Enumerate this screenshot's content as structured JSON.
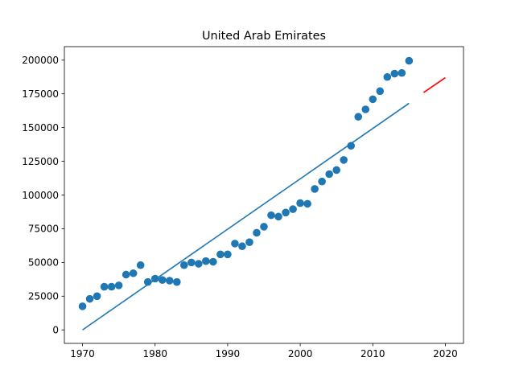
{
  "chart_data": {
    "type": "scatter",
    "title": "United Arab Emirates",
    "xlabel": "",
    "ylabel": "",
    "xlim": [
      1967.5,
      2022.5
    ],
    "ylim": [
      -10000,
      210000
    ],
    "xticks": [
      1970,
      1980,
      1990,
      2000,
      2010,
      2020
    ],
    "yticks": [
      0,
      25000,
      50000,
      75000,
      100000,
      125000,
      150000,
      175000,
      200000
    ],
    "grid": false,
    "colors": {
      "points": "#1f77b4",
      "fit": "#1f77b4",
      "forecast": "#ff0000"
    },
    "series": [
      {
        "kind": "scatter",
        "x": [
          1970,
          1971,
          1972,
          1973,
          1974,
          1975,
          1976,
          1977,
          1978,
          1979,
          1980,
          1981,
          1982,
          1983,
          1984,
          1985,
          1986,
          1987,
          1988,
          1989,
          1990,
          1991,
          1992,
          1993,
          1994,
          1995,
          1996,
          1997,
          1998,
          1999,
          2000,
          2001,
          2002,
          2003,
          2004,
          2005,
          2006,
          2007,
          2008,
          2009,
          2010,
          2011,
          2012,
          2013,
          2014,
          2015
        ],
        "y": [
          17500,
          23000,
          25000,
          32000,
          32000,
          33000,
          41000,
          42000,
          48000,
          35500,
          38000,
          37000,
          36500,
          35500,
          48000,
          50000,
          49000,
          51000,
          50500,
          56000,
          56000,
          64000,
          62000,
          65000,
          72000,
          76500,
          85000,
          84000,
          87000,
          89500,
          94000,
          93500,
          104500,
          110000,
          115500,
          118500,
          126000,
          136500,
          158000,
          163500,
          171000,
          177000,
          187500,
          190000,
          190500,
          199500
        ]
      },
      {
        "kind": "line",
        "x": [
          1970,
          2015
        ],
        "y": [
          0,
          168000
        ]
      },
      {
        "kind": "line",
        "x": [
          2017,
          2020
        ],
        "y": [
          176000,
          187000
        ]
      }
    ]
  }
}
